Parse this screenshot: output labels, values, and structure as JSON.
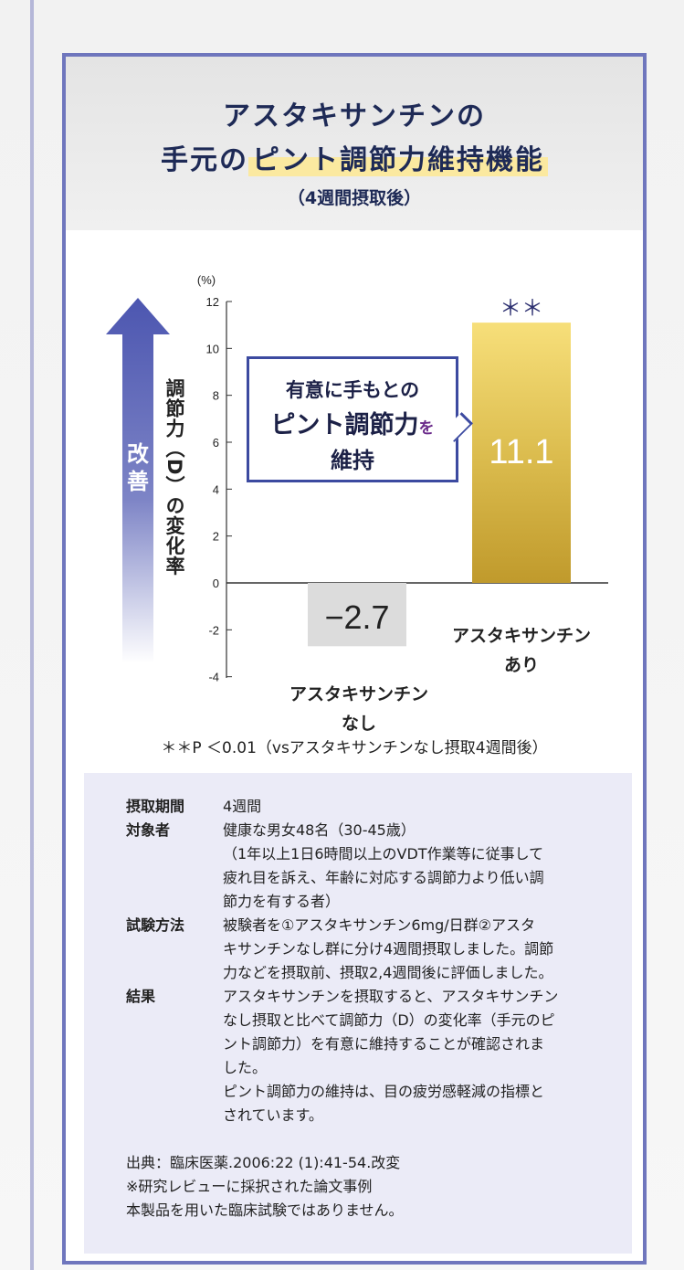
{
  "title": {
    "line1": "アスタキサンチンの",
    "line2_prefix": "手元の",
    "line2_highlight": "ピント調節力維持機能",
    "sub": "（4週間摂取後）"
  },
  "arrow": {
    "label": "改善"
  },
  "callout": {
    "line1": "有意に手もとの",
    "line2": "ピント調節力",
    "line2_particle": "を",
    "line3": "維持"
  },
  "chart_data": {
    "type": "bar",
    "title": "",
    "ylabel": "調節力（D）の変化率",
    "yunit": "(%)",
    "ylim": [
      -4,
      12
    ],
    "yticks": [
      "12",
      "10",
      "8",
      "6",
      "4",
      "2",
      "0",
      "-2",
      "-4"
    ],
    "categories": [
      "アスタキサンチンなし",
      "アスタキサンチンあり"
    ],
    "category_lines": [
      [
        "アスタキサンチン",
        "なし"
      ],
      [
        "アスタキサンチン",
        "あり"
      ]
    ],
    "values": [
      -2.7,
      11.1
    ],
    "value_labels": [
      "−2.7",
      "11.1"
    ],
    "significance": [
      "",
      "＊＊"
    ],
    "colors": [
      "#dcdcdc",
      "#d9b84a"
    ]
  },
  "footnote": "＊＊P ＜0.01（vsアスタキサンチンなし摂取4週間後）",
  "info": {
    "rows": [
      {
        "key": "摂取期間",
        "lines": [
          "4週間"
        ]
      },
      {
        "key": "対象者",
        "lines": [
          "健康な男女48名（30-45歳）",
          "（1年以上1日6時間以上のVDT作業等に従事して",
          "疲れ目を訴え、年齢に対応する調節力より低い調",
          "節力を有する者）"
        ]
      },
      {
        "key": "試験方法",
        "lines": [
          "被験者を①アスタキサンチン6mg/日群②アスタ",
          "キサンチンなし群に分け4週間摂取しました。調節",
          "力などを摂取前、摂取2,4週間後に評価しました。"
        ]
      },
      {
        "key": "結果",
        "lines": [
          "アスタキサンチンを摂取すると、アスタキサンチン",
          "なし摂取と比べて調節力（D）の変化率（手元のピ",
          "ント調節力）を有意に維持することが確認されま",
          "した。",
          "ピント調節力の維持は、目の疲労感軽減の指標と",
          "されています。"
        ]
      }
    ],
    "source": [
      "出典：臨床医薬.2006:22 (1):41-54.改変",
      "※研究レビューに採択された論文事例",
      "本製品を用いた臨床試験ではありません。"
    ]
  }
}
